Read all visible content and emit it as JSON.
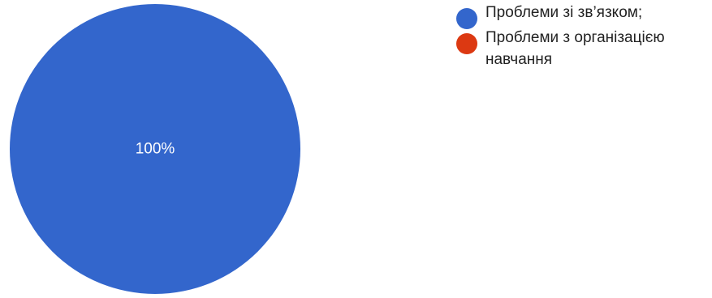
{
  "chart_data": {
    "type": "pie",
    "title": "",
    "slices": [
      {
        "label": "Проблеми зі зв’язком;",
        "value": 100,
        "display": "100%",
        "color": "#3366cc"
      },
      {
        "label": "Проблеми з організацією навчання",
        "value": 0,
        "display": "",
        "color": "#dc3912"
      }
    ],
    "legend_position": "top-right"
  }
}
